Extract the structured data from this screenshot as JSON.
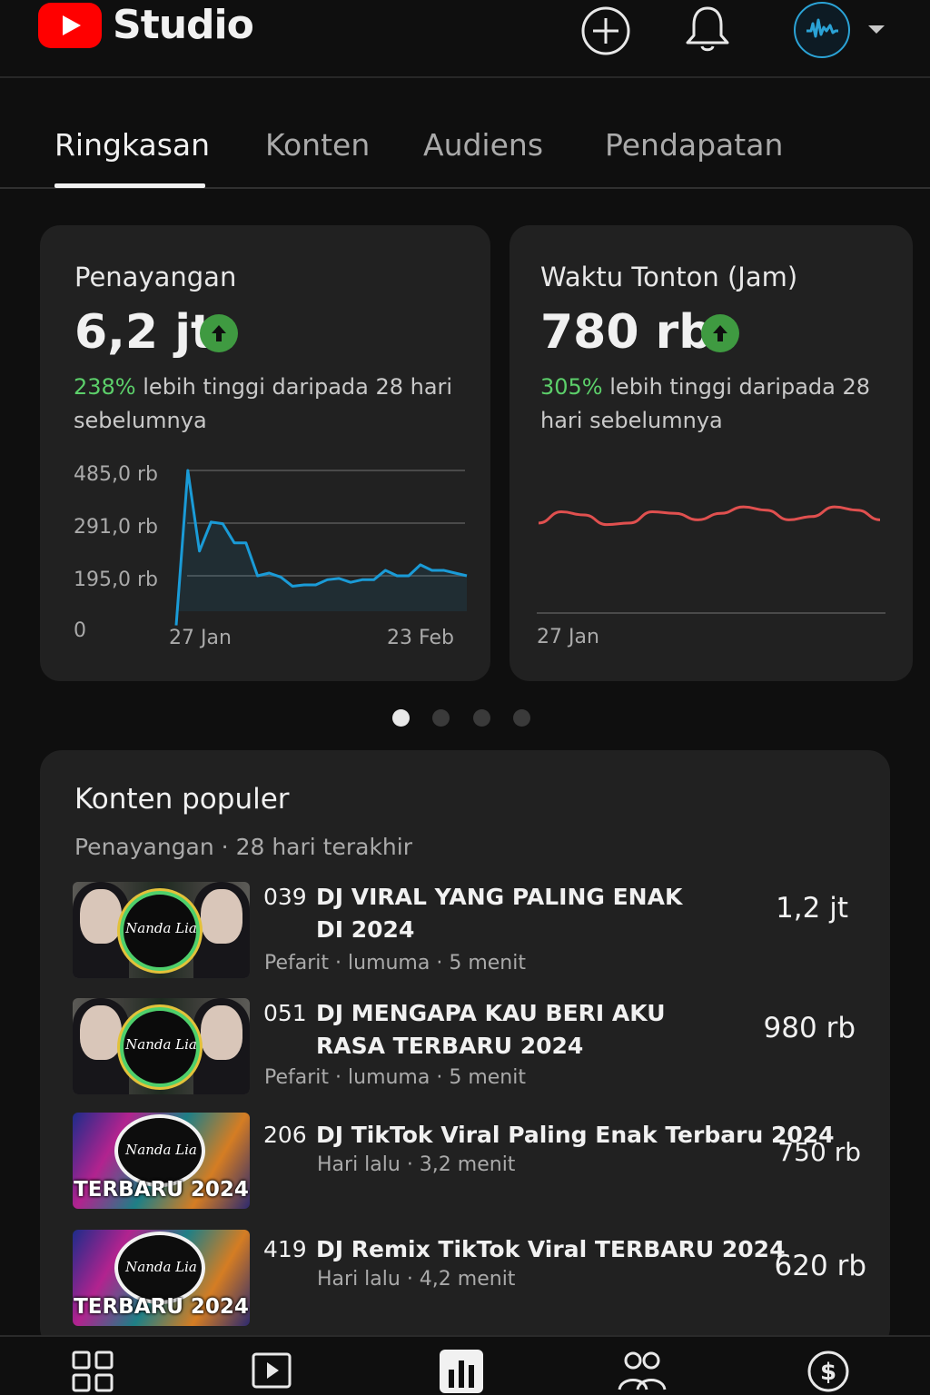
{
  "header": {
    "app_title": "Studio",
    "icons": [
      "youtube-logo-icon",
      "create-plus-icon",
      "bell-icon",
      "channel-avatar",
      "chevron-down-icon"
    ]
  },
  "tabs": [
    {
      "label": "Ringkasan",
      "active": true
    },
    {
      "label": "Konten",
      "active": false
    },
    {
      "label": "Audiens",
      "active": false
    },
    {
      "label": "Pendapatan",
      "active": false
    }
  ],
  "cards": [
    {
      "title": "Penayangan",
      "value": "6,2 jt",
      "trend": "up",
      "change_pct": "238%",
      "change_text": " lebih tinggi daripada 28 hari sebelumnya"
    },
    {
      "title": "Waktu Tonton (Jam)",
      "value": "780 rb",
      "trend": "up",
      "change_pct": "305%",
      "change_text": " lebih tinggi  daripada 28 hari sebelumnya"
    }
  ],
  "chart_data": [
    {
      "type": "line",
      "title": "Penayangan",
      "x_tick_labels": [
        "27 Jan",
        "23 Feb"
      ],
      "y_tick_labels": [
        "485,0 rb",
        "291,0 rb",
        "195,0 rb",
        "0"
      ],
      "series": [
        {
          "color": "#1a9bd7",
          "values": [
            {
              "x": 0,
              "y": 5
            },
            {
              "x": 1,
              "y": 485
            },
            {
              "x": 2,
              "y": 240
            },
            {
              "x": 3,
              "y": 295
            },
            {
              "x": 4,
              "y": 290
            },
            {
              "x": 5,
              "y": 255
            },
            {
              "x": 6,
              "y": 255
            },
            {
              "x": 7,
              "y": 195
            },
            {
              "x": 8,
              "y": 200
            },
            {
              "x": 9,
              "y": 190
            },
            {
              "x": 10,
              "y": 155
            },
            {
              "x": 11,
              "y": 160
            },
            {
              "x": 12,
              "y": 160
            },
            {
              "x": 13,
              "y": 180
            },
            {
              "x": 14,
              "y": 185
            },
            {
              "x": 15,
              "y": 170
            },
            {
              "x": 16,
              "y": 180
            },
            {
              "x": 17,
              "y": 180
            },
            {
              "x": 18,
              "y": 205
            },
            {
              "x": 19,
              "y": 195
            },
            {
              "x": 20,
              "y": 195
            },
            {
              "x": 21,
              "y": 215
            },
            {
              "x": 22,
              "y": 205
            },
            {
              "x": 23,
              "y": 205
            },
            {
              "x": 24,
              "y": 200
            },
            {
              "x": 25,
              "y": 195
            }
          ]
        }
      ],
      "grid": true
    },
    {
      "type": "line",
      "title": "Waktu Tonton (Jam)",
      "x_tick_labels": [
        "27 Jan"
      ],
      "series": [
        {
          "color": "#e0504f",
          "values": [
            {
              "x": 0,
              "y": 56
            },
            {
              "x": 1,
              "y": 63
            },
            {
              "x": 2,
              "y": 61
            },
            {
              "x": 3,
              "y": 55
            },
            {
              "x": 4,
              "y": 56
            },
            {
              "x": 5,
              "y": 63
            },
            {
              "x": 6,
              "y": 62
            },
            {
              "x": 7,
              "y": 58
            },
            {
              "x": 8,
              "y": 62
            },
            {
              "x": 9,
              "y": 66
            },
            {
              "x": 10,
              "y": 64
            },
            {
              "x": 11,
              "y": 58
            },
            {
              "x": 12,
              "y": 60
            },
            {
              "x": 13,
              "y": 66
            },
            {
              "x": 14,
              "y": 64
            },
            {
              "x": 15,
              "y": 58
            }
          ]
        }
      ],
      "ylim": [
        0,
        100
      ],
      "grid": false
    }
  ],
  "pager": {
    "count": 4,
    "active_index": 0
  },
  "popular": {
    "title": "Konten populer",
    "subtitle": "Penayangan · 28 hari terakhir",
    "items": [
      {
        "number": "039",
        "title": "DJ VIRAL YANG PALING ENAK DI 2024",
        "meta": "Pefarit · lumuma · 5 menit",
        "views": "1,2 jt",
        "thumb_script": "Nanda Lia"
      },
      {
        "number": "051",
        "title": "DJ MENGAPA KAU BERI AKU RASA TERBARU 2024",
        "meta": "Pefarit · lumuma · 5 menit",
        "views": "980 rb",
        "thumb_script": "Nanda Lia"
      },
      {
        "number": "206",
        "title": "DJ TikTok Viral Paling Enak Terbaru 2024",
        "meta": "Hari lalu · 3,2 menit",
        "views": "750 rb",
        "thumb_script": "Nanda Lia",
        "thumb_badge": "TERBARU 2024"
      },
      {
        "number": "419",
        "title": "DJ Remix TikTok Viral TERBARU 2024",
        "meta": "Hari lalu · 4,2 menit",
        "views": "620 rb",
        "thumb_script": "Nanda Lia",
        "thumb_badge": "TERBARU 2024"
      }
    ]
  },
  "bottom_nav": [
    {
      "icon": "dashboard-icon",
      "active": false
    },
    {
      "icon": "content-play-icon",
      "active": false
    },
    {
      "icon": "analytics-icon",
      "active": true
    },
    {
      "icon": "community-icon",
      "active": false
    },
    {
      "icon": "earn-dollar-icon",
      "active": false
    }
  ]
}
